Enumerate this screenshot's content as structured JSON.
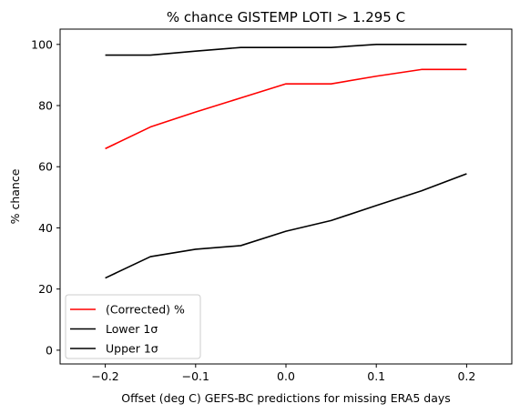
{
  "chart_data": {
    "type": "line",
    "title": "% chance GISTEMP LOTI > 1.295 C",
    "xlabel": "Offset (deg C) GEFS-BC predictions for missing ERA5 days",
    "ylabel": "% chance",
    "xlim": [
      -0.25,
      0.25
    ],
    "ylim": [
      -4.5,
      105
    ],
    "x_ticks": [
      -0.2,
      -0.1,
      0.0,
      0.1,
      0.2
    ],
    "x_tick_labels": [
      "−0.2",
      "−0.1",
      "0.0",
      "0.1",
      "0.2"
    ],
    "y_ticks": [
      0,
      20,
      40,
      60,
      80,
      100
    ],
    "y_tick_labels": [
      "0",
      "20",
      "40",
      "60",
      "80",
      "100"
    ],
    "grid": false,
    "legend_position": "lower-left",
    "x": [
      -0.2,
      -0.15,
      -0.1,
      -0.05,
      0.0,
      0.05,
      0.1,
      0.15,
      0.2
    ],
    "series": [
      {
        "name": "(Corrected) %",
        "color": "#ff0000",
        "values": [
          65.9,
          73.0,
          77.9,
          82.5,
          87.1,
          87.1,
          89.6,
          91.8,
          91.8
        ]
      },
      {
        "name": "Lower 1σ",
        "color": "#000000",
        "values": [
          23.6,
          30.6,
          33.0,
          34.2,
          38.9,
          42.4,
          47.3,
          52.1,
          57.7
        ]
      },
      {
        "name": "Upper 1σ",
        "color": "#000000",
        "values": [
          96.5,
          96.5,
          97.8,
          99.0,
          99.0,
          99.0,
          100.0,
          100.0,
          100.0
        ]
      }
    ]
  }
}
